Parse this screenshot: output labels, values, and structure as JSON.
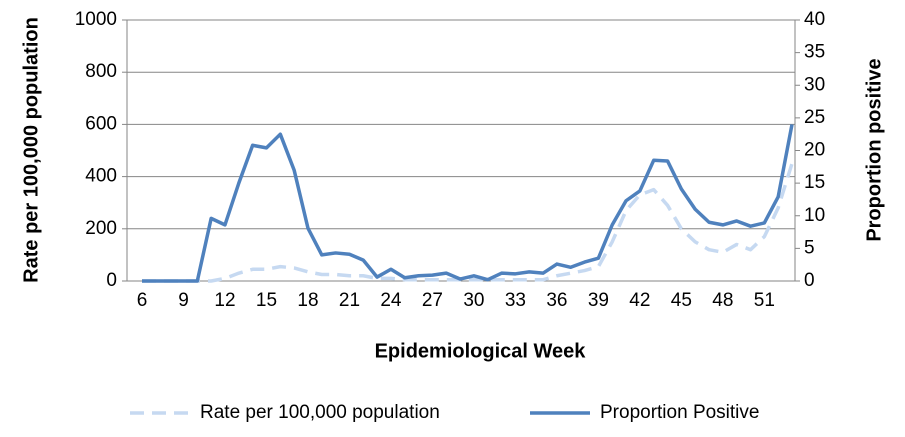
{
  "chart_data": {
    "type": "line",
    "x_label": "Epidemiological Week",
    "y_label": "Rate per 100,000 population",
    "y2_label": "Proportion positive",
    "categories": [
      "6",
      null,
      null,
      "9",
      null,
      null,
      "12",
      null,
      null,
      "15",
      null,
      null,
      "18",
      null,
      null,
      "21",
      null,
      null,
      "24",
      null,
      null,
      "27",
      null,
      null,
      "30",
      null,
      null,
      "33",
      null,
      null,
      "36",
      null,
      null,
      "39",
      null,
      null,
      "42",
      null,
      null,
      "45",
      null,
      null,
      "48",
      null,
      null,
      "51",
      null,
      null
    ],
    "series": [
      {
        "name": "Rate per 100,000 population",
        "color": "#c6d9f1",
        "dashed": true,
        "values": [
          0,
          0,
          0,
          0,
          0,
          0,
          10,
          30,
          45,
          45,
          55,
          50,
          35,
          25,
          25,
          20,
          20,
          10,
          10,
          5,
          5,
          5,
          5,
          5,
          5,
          5,
          5,
          5,
          5,
          5,
          20,
          30,
          40,
          55,
          150,
          270,
          330,
          350,
          290,
          200,
          150,
          120,
          110,
          140,
          120,
          170,
          280,
          450
        ]
      },
      {
        "name": "Proportion Positive",
        "color": "#4f81bd",
        "axis": "y2",
        "values": [
          0,
          0,
          0,
          0,
          0,
          9.6,
          8.6,
          15,
          20.8,
          20.4,
          22.5,
          17,
          8.1,
          4,
          4.3,
          4.1,
          3.2,
          0.6,
          1.8,
          0.5,
          0.8,
          0.9,
          1.2,
          0.3,
          0.8,
          0.2,
          1.2,
          1.1,
          1.4,
          1.2,
          2.6,
          2.1,
          2.9,
          3.5,
          8.6,
          12.3,
          13.8,
          18.5,
          18.4,
          14.1,
          11,
          9,
          8.6,
          9.2,
          8.4,
          8.9,
          12.9,
          24
        ]
      }
    ],
    "ylim": [
      0,
      1000
    ],
    "yticks": [
      0,
      200,
      400,
      600,
      800,
      1000
    ],
    "y2lim": [
      0,
      40
    ],
    "y2ticks": [
      0,
      5,
      10,
      15,
      20,
      25,
      30,
      35,
      40
    ],
    "grid": true,
    "legend": "bottom"
  }
}
